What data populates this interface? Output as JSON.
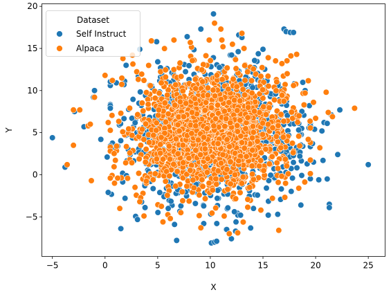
{
  "chart_data": {
    "type": "scatter",
    "title": "",
    "xlabel": "X",
    "ylabel": "Y",
    "xlim": [
      -6.0,
      26.6
    ],
    "ylim": [
      -9.7,
      20.3
    ],
    "xticks": [
      -5,
      0,
      5,
      10,
      15,
      20,
      25
    ],
    "yticks": [
      -5,
      0,
      5,
      10,
      15,
      20
    ],
    "grid": false,
    "legend": {
      "title": "Dataset",
      "placement": "top-left"
    },
    "series": [
      {
        "name": "Self Instruct",
        "color": "#1f77b4",
        "cluster": {
          "center": [
            10.5,
            5.0
          ],
          "spread": [
            3.8,
            3.6
          ],
          "count": 1400
        },
        "points": [
          [
            -5.0,
            4.4
          ],
          [
            -3.8,
            0.9
          ],
          [
            -2.9,
            7.5
          ],
          [
            -2.0,
            5.7
          ],
          [
            -1.1,
            9.2
          ],
          [
            -1.0,
            10.0
          ],
          [
            -0.4,
            4.2
          ],
          [
            0.2,
            2.1
          ],
          [
            0.3,
            -2.1
          ],
          [
            0.5,
            7.9
          ],
          [
            0.9,
            2.6
          ],
          [
            1.2,
            3.4
          ],
          [
            1.5,
            -6.4
          ],
          [
            1.9,
            -2.8
          ],
          [
            2.0,
            13.0
          ],
          [
            1.8,
            10.7
          ],
          [
            3.3,
            14.9
          ],
          [
            3.8,
            -3.9
          ],
          [
            4.4,
            2.3
          ],
          [
            4.9,
            15.8
          ],
          [
            5.6,
            -2.6
          ],
          [
            6.0,
            -4.0
          ],
          [
            6.6,
            -5.9
          ],
          [
            6.8,
            -7.8
          ],
          [
            7.8,
            16.4
          ],
          [
            9.1,
            17.3
          ],
          [
            10.3,
            19.1
          ],
          [
            10.1,
            -8.1
          ],
          [
            10.4,
            -8.0
          ],
          [
            10.6,
            -7.9
          ],
          [
            11.2,
            12.2
          ],
          [
            12.0,
            -7.6
          ],
          [
            12.4,
            -6.7
          ],
          [
            12.7,
            16.6
          ],
          [
            13.0,
            16.3
          ],
          [
            14.1,
            -4.0
          ],
          [
            15.0,
            14.9
          ],
          [
            15.5,
            -4.8
          ],
          [
            16.4,
            -4.7
          ],
          [
            17.0,
            17.3
          ],
          [
            17.2,
            17.0
          ],
          [
            17.6,
            16.9
          ],
          [
            17.9,
            16.9
          ],
          [
            17.8,
            -0.4
          ],
          [
            18.4,
            6.1
          ],
          [
            18.6,
            -3.6
          ],
          [
            18.5,
            2.2
          ],
          [
            19.0,
            10.0
          ],
          [
            19.7,
            3.7
          ],
          [
            19.8,
            1.5
          ],
          [
            19.9,
            5.4
          ],
          [
            20.3,
            -0.6
          ],
          [
            20.6,
            5.2
          ],
          [
            20.7,
            1.7
          ],
          [
            20.8,
            6.2
          ],
          [
            21.1,
            6.1
          ],
          [
            21.3,
            -3.5
          ],
          [
            21.3,
            -3.9
          ],
          [
            21.5,
            7.1
          ],
          [
            21.1,
            -0.5
          ],
          [
            22.1,
            2.4
          ],
          [
            22.3,
            7.7
          ],
          [
            25.0,
            1.2
          ]
        ]
      },
      {
        "name": "Alpaca",
        "color": "#ff7f0e",
        "cluster": {
          "center": [
            10.2,
            5.0
          ],
          "spread": [
            3.5,
            3.5
          ],
          "count": 1600
        },
        "points": [
          [
            -3.6,
            1.2
          ],
          [
            -3.0,
            7.7
          ],
          [
            -2.4,
            7.7
          ],
          [
            -3.0,
            3.5
          ],
          [
            -1.6,
            5.8
          ],
          [
            -1.4,
            6.0
          ],
          [
            -1.3,
            -0.7
          ],
          [
            -1.0,
            9.2
          ],
          [
            0.0,
            11.8
          ],
          [
            0.3,
            6.2
          ],
          [
            0.7,
            11.2
          ],
          [
            0.9,
            -1.0
          ],
          [
            1.1,
            3.4
          ],
          [
            1.2,
            -0.4
          ],
          [
            1.4,
            -4.0
          ],
          [
            1.7,
            13.8
          ],
          [
            2.6,
            14.2
          ],
          [
            3.3,
            -3.2
          ],
          [
            3.7,
            -4.9
          ],
          [
            4.4,
            15.9
          ],
          [
            5.5,
            -5.6
          ],
          [
            6.2,
            -5.2
          ],
          [
            7.2,
            -4.5
          ],
          [
            8.1,
            15.7
          ],
          [
            9.1,
            -6.3
          ],
          [
            10.4,
            18.0
          ],
          [
            11.0,
            17.3
          ],
          [
            11.2,
            15.2
          ],
          [
            11.8,
            -7.0
          ],
          [
            12.1,
            15.5
          ],
          [
            12.6,
            -6.9
          ],
          [
            13.0,
            16.8
          ],
          [
            13.2,
            15.0
          ],
          [
            14.8,
            -4.2
          ],
          [
            15.5,
            13.9
          ],
          [
            15.9,
            -2.8
          ],
          [
            16.5,
            -6.6
          ],
          [
            16.8,
            13.2
          ],
          [
            17.3,
            12.0
          ],
          [
            17.9,
            10.6
          ],
          [
            18.2,
            14.3
          ],
          [
            18.4,
            -1.6
          ],
          [
            18.9,
            8.3
          ],
          [
            19.0,
            9.7
          ],
          [
            19.3,
            4.2
          ],
          [
            19.8,
            8.6
          ],
          [
            20.0,
            6.7
          ],
          [
            20.4,
            3.2
          ],
          [
            21.0,
            9.8
          ],
          [
            21.2,
            7.4
          ],
          [
            21.6,
            6.9
          ],
          [
            23.7,
            7.9
          ]
        ]
      }
    ]
  }
}
